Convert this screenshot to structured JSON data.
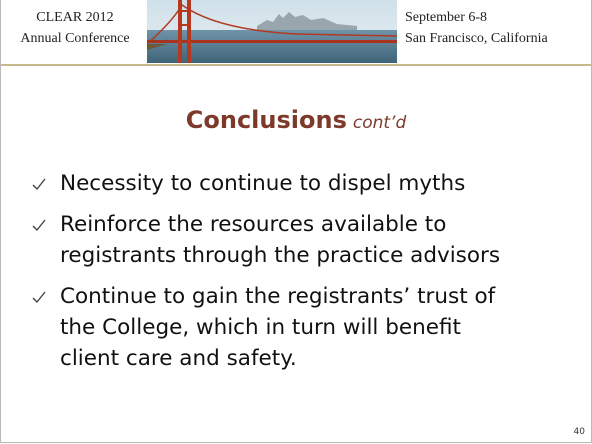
{
  "header": {
    "left": [
      "CLEAR 2012",
      "Annual Conference"
    ],
    "right": [
      "September 6-8",
      "San Francisco, California"
    ]
  },
  "title": {
    "main": "Conclusions",
    "suffix": "cont’d"
  },
  "bullets": [
    [
      "Necessity to continue to dispel myths"
    ],
    [
      "Reinforce the resources available to",
      "registrants through the practice advisors"
    ],
    [
      "Continue to gain the registrants’ trust of",
      "the College, which in turn will benefit",
      "client care and safety."
    ]
  ],
  "page_number": "40"
}
